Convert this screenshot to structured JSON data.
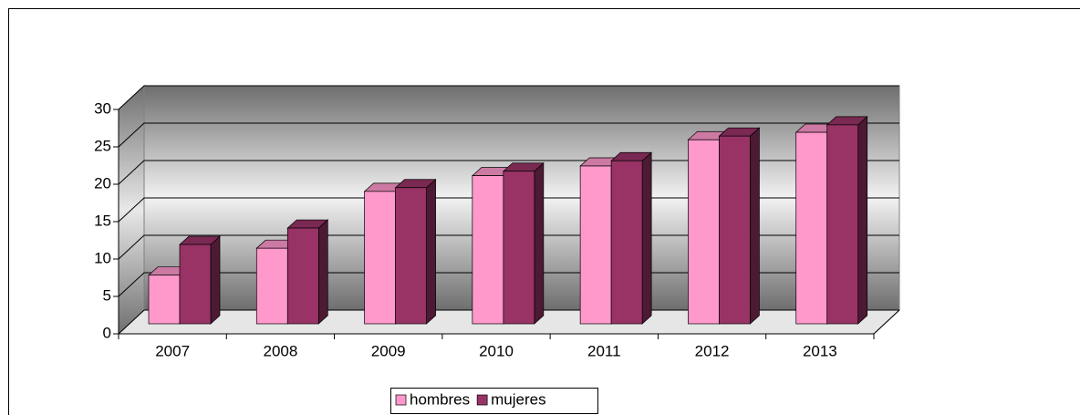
{
  "chart_data": {
    "type": "bar",
    "categories": [
      "2007",
      "2008",
      "2009",
      "2010",
      "2011",
      "2012",
      "2013"
    ],
    "series": [
      {
        "name": "hombres",
        "color": "#ff99cc",
        "values": [
          6.5,
          10.1,
          17.7,
          19.8,
          21.1,
          24.6,
          25.6
        ]
      },
      {
        "name": "mujeres",
        "color": "#993366",
        "values": [
          10.6,
          12.8,
          18.2,
          20.4,
          21.8,
          25.1,
          26.6
        ]
      }
    ],
    "ylim": [
      0,
      30
    ],
    "yticks": [
      0,
      5,
      10,
      15,
      20,
      25,
      30
    ],
    "grid": true,
    "legend": "bottom"
  }
}
